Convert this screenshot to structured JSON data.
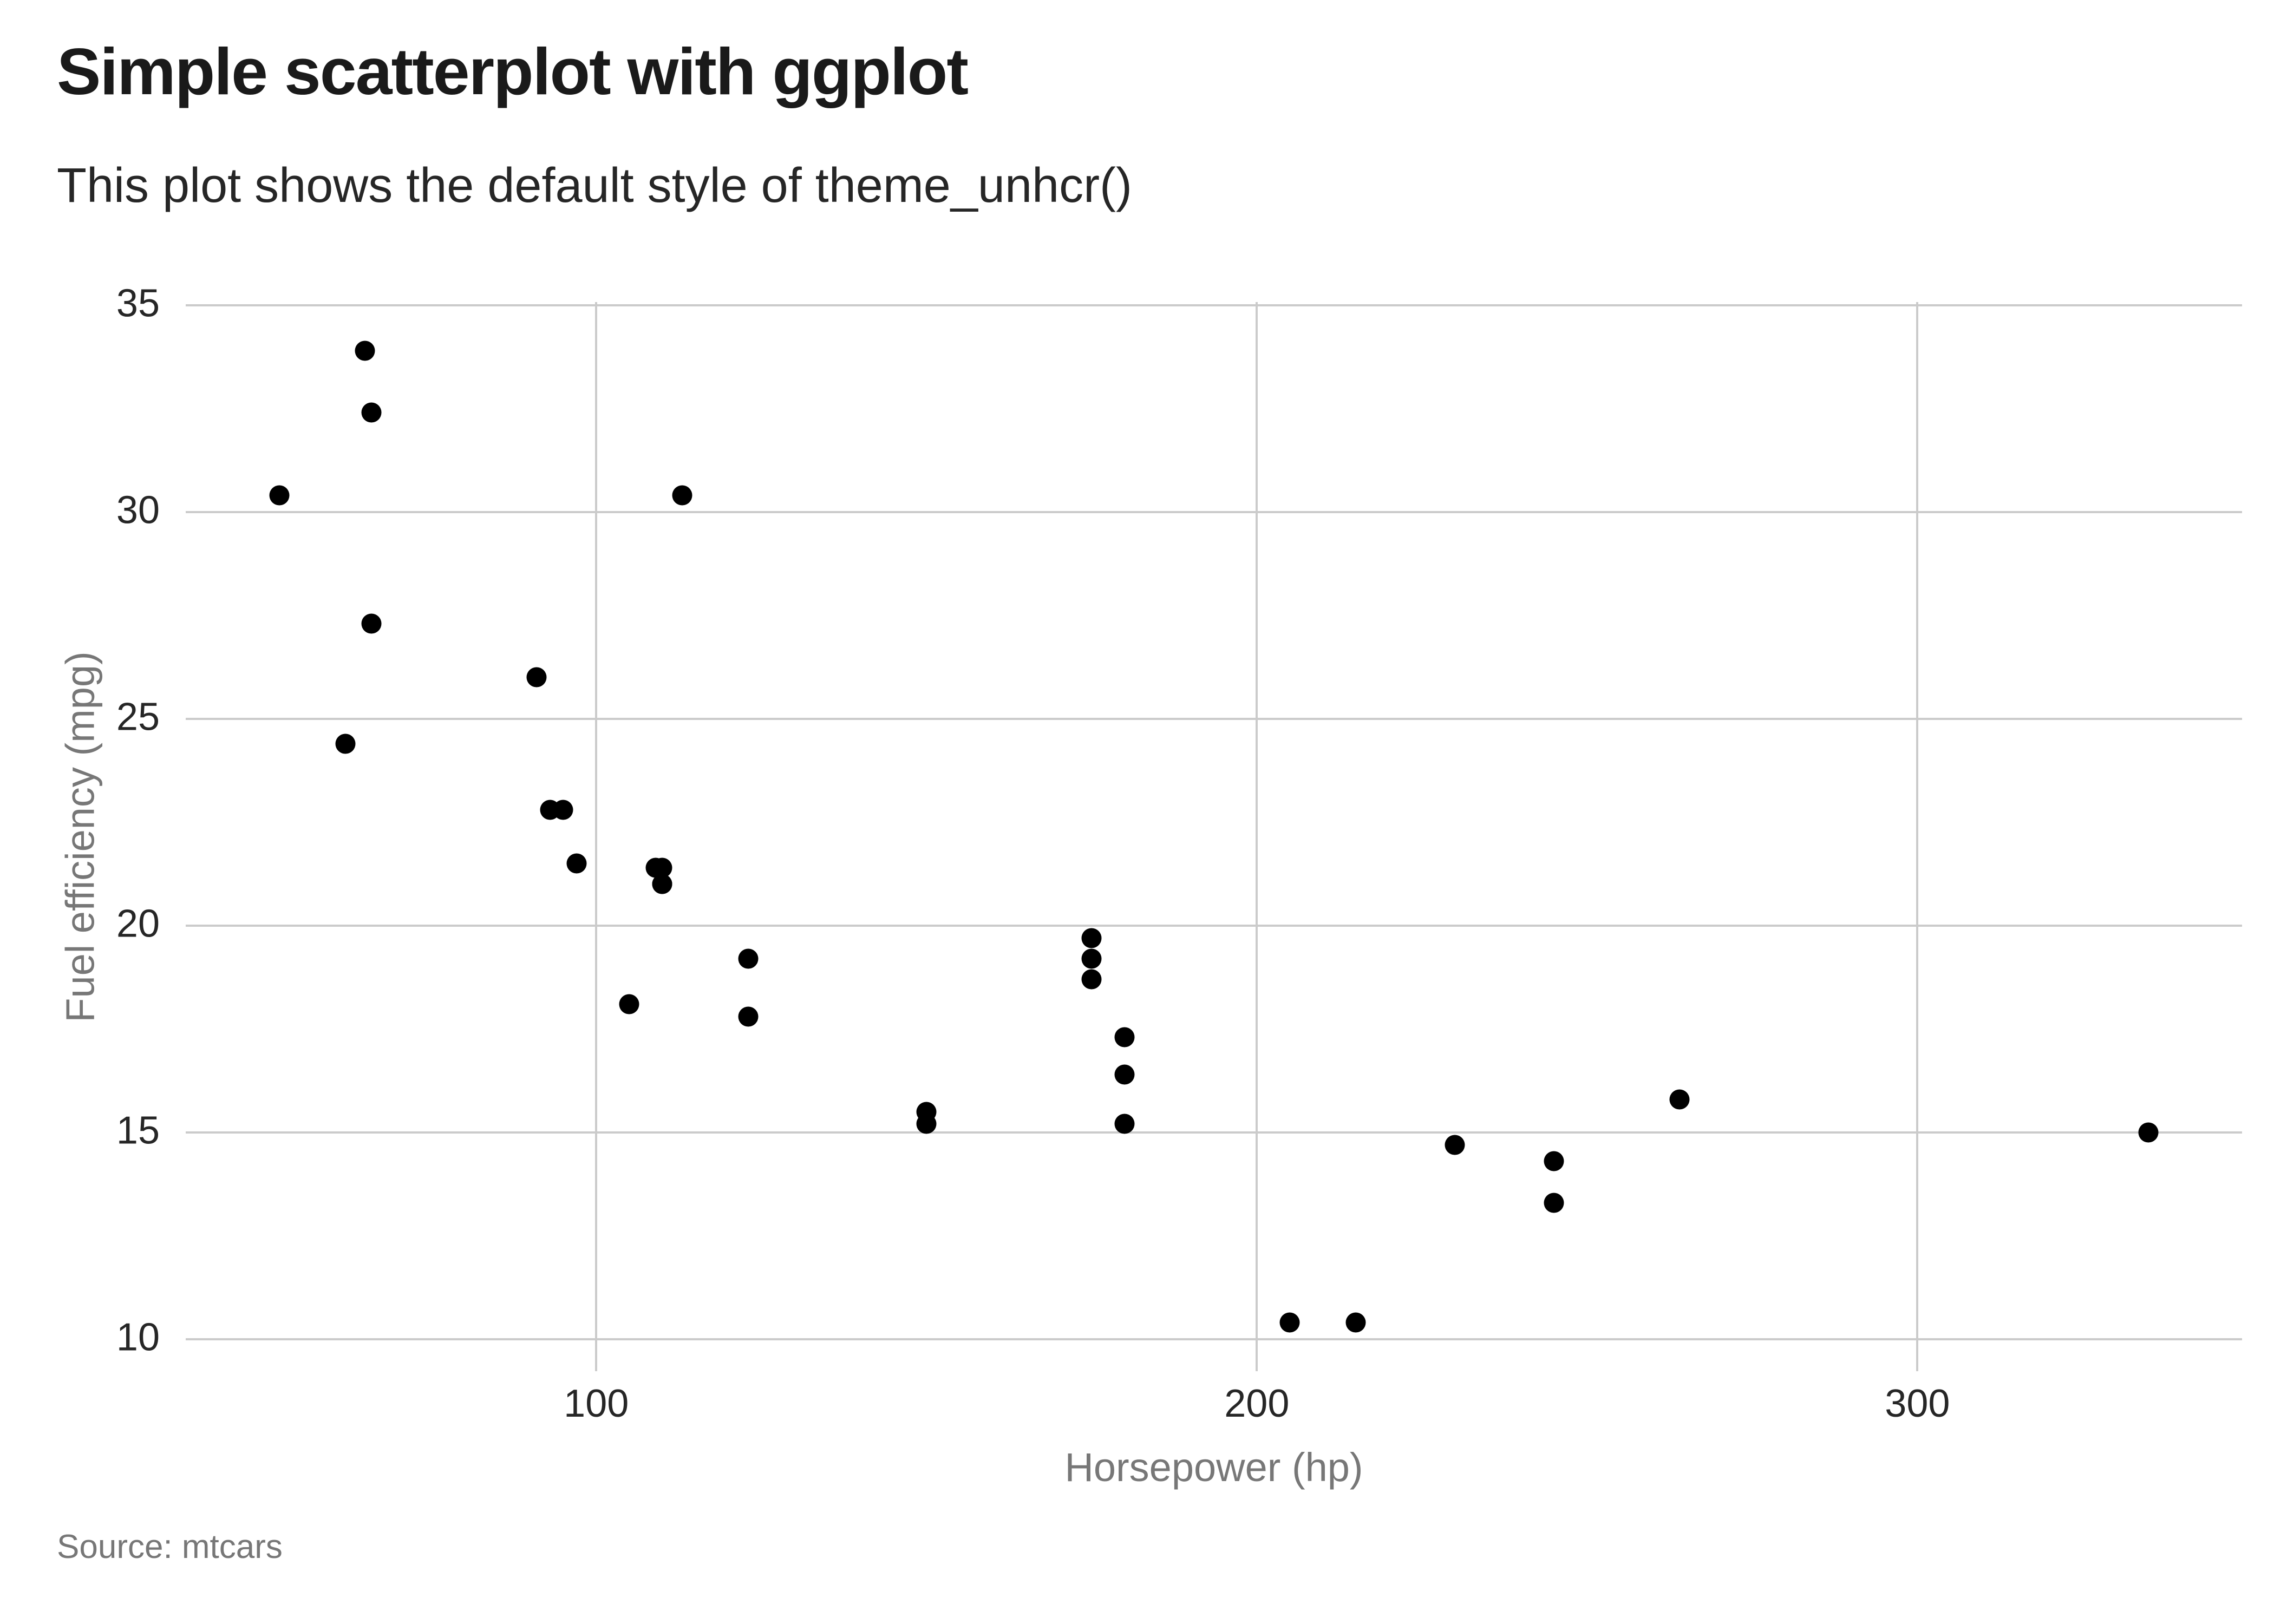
{
  "chart_data": {
    "type": "scatter",
    "title": "Simple scatterplot with ggplot",
    "subtitle": "This plot shows the default style of theme_unhcr()",
    "xlabel": "Horsepower (hp)",
    "ylabel": "Fuel efficiency (mpg)",
    "caption": "Source: mtcars",
    "x_ticks": [
      100,
      200,
      300
    ],
    "y_ticks": [
      10,
      15,
      20,
      25,
      30,
      35
    ],
    "xlim": [
      37.85,
      349.15
    ],
    "ylim": [
      9.225,
      35.075
    ],
    "grid": "major-only",
    "legend": "none",
    "series": [
      {
        "name": "mtcars",
        "points": [
          [
            110,
            21.0
          ],
          [
            110,
            21.0
          ],
          [
            93,
            22.8
          ],
          [
            110,
            21.4
          ],
          [
            175,
            18.7
          ],
          [
            105,
            18.1
          ],
          [
            245,
            14.3
          ],
          [
            62,
            24.4
          ],
          [
            95,
            22.8
          ],
          [
            123,
            19.2
          ],
          [
            123,
            17.8
          ],
          [
            180,
            16.4
          ],
          [
            180,
            17.3
          ],
          [
            180,
            15.2
          ],
          [
            205,
            10.4
          ],
          [
            215,
            10.4
          ],
          [
            230,
            14.7
          ],
          [
            66,
            32.4
          ],
          [
            52,
            30.4
          ],
          [
            65,
            33.9
          ],
          [
            97,
            21.5
          ],
          [
            150,
            15.5
          ],
          [
            150,
            15.2
          ],
          [
            245,
            13.3
          ],
          [
            175,
            19.2
          ],
          [
            66,
            27.3
          ],
          [
            91,
            26.0
          ],
          [
            113,
            30.4
          ],
          [
            264,
            15.8
          ],
          [
            175,
            19.7
          ],
          [
            335,
            15.0
          ],
          [
            109,
            21.4
          ]
        ]
      }
    ],
    "colors": {
      "point": "#000000",
      "grid": "#CBCBCB",
      "tick_label": "#262626",
      "axis_title": "#777777",
      "title": "#1A1A1A",
      "subtitle": "#262626",
      "caption": "#777777",
      "background": "#FFFFFF"
    }
  }
}
